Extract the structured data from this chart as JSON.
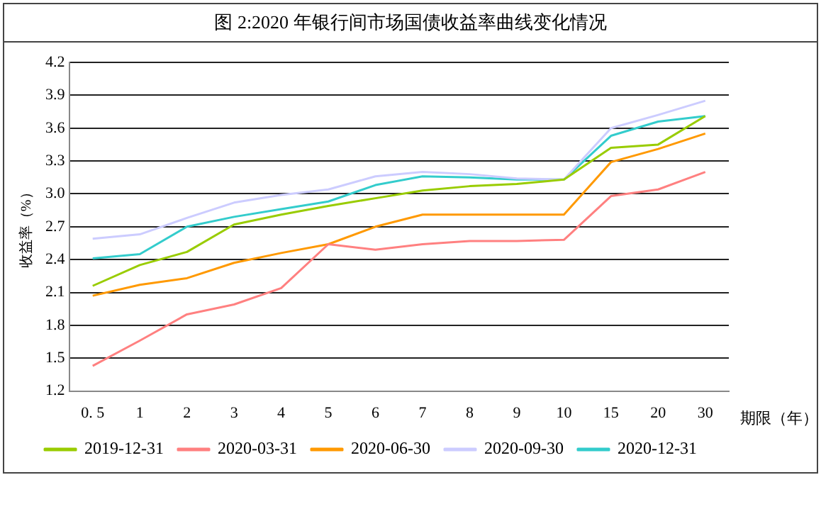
{
  "chart_data": {
    "type": "line",
    "title": "图 2:2020 年银行间市场国债收益率曲线变化情况",
    "xlabel": "期限（年）",
    "ylabel": "收益率（%）",
    "categories": [
      "0. 5",
      "1",
      "2",
      "3",
      "4",
      "5",
      "6",
      "7",
      "8",
      "9",
      "10",
      "15",
      "20",
      "30"
    ],
    "series": [
      {
        "name": "2019-12-31",
        "color": "#99cc00",
        "values": [
          2.16,
          2.35,
          2.47,
          2.72,
          2.81,
          2.89,
          2.96,
          3.03,
          3.07,
          3.09,
          3.13,
          3.42,
          3.45,
          3.71
        ]
      },
      {
        "name": "2020-03-31",
        "color": "#ff8080",
        "values": [
          1.43,
          1.66,
          1.9,
          1.99,
          2.14,
          2.54,
          2.49,
          2.54,
          2.57,
          2.57,
          2.58,
          2.98,
          3.04,
          3.2
        ]
      },
      {
        "name": "2020-06-30",
        "color": "#ff9900",
        "values": [
          2.07,
          2.17,
          2.23,
          2.37,
          2.46,
          2.54,
          2.7,
          2.81,
          2.81,
          2.81,
          2.81,
          3.29,
          3.41,
          3.55
        ]
      },
      {
        "name": "2020-09-30",
        "color": "#ccccff",
        "values": [
          2.59,
          2.63,
          2.78,
          2.92,
          2.99,
          3.04,
          3.16,
          3.2,
          3.18,
          3.14,
          3.13,
          3.6,
          3.72,
          3.85
        ]
      },
      {
        "name": "2020-12-31",
        "color": "#33cccc",
        "values": [
          2.41,
          2.45,
          2.7,
          2.79,
          2.86,
          2.93,
          3.08,
          3.16,
          3.15,
          3.13,
          3.13,
          3.53,
          3.66,
          3.71
        ]
      }
    ],
    "ylim": [
      1.2,
      4.2
    ],
    "yticks": [
      1.2,
      1.5,
      1.8,
      2.1,
      2.4,
      2.7,
      {
        "value": 3,
        "label": "3.0"
      },
      3.3,
      3.6,
      3.9,
      4.2
    ],
    "grid": "y",
    "legend": "bottom",
    "marker": "none",
    "line_style": "solid"
  }
}
